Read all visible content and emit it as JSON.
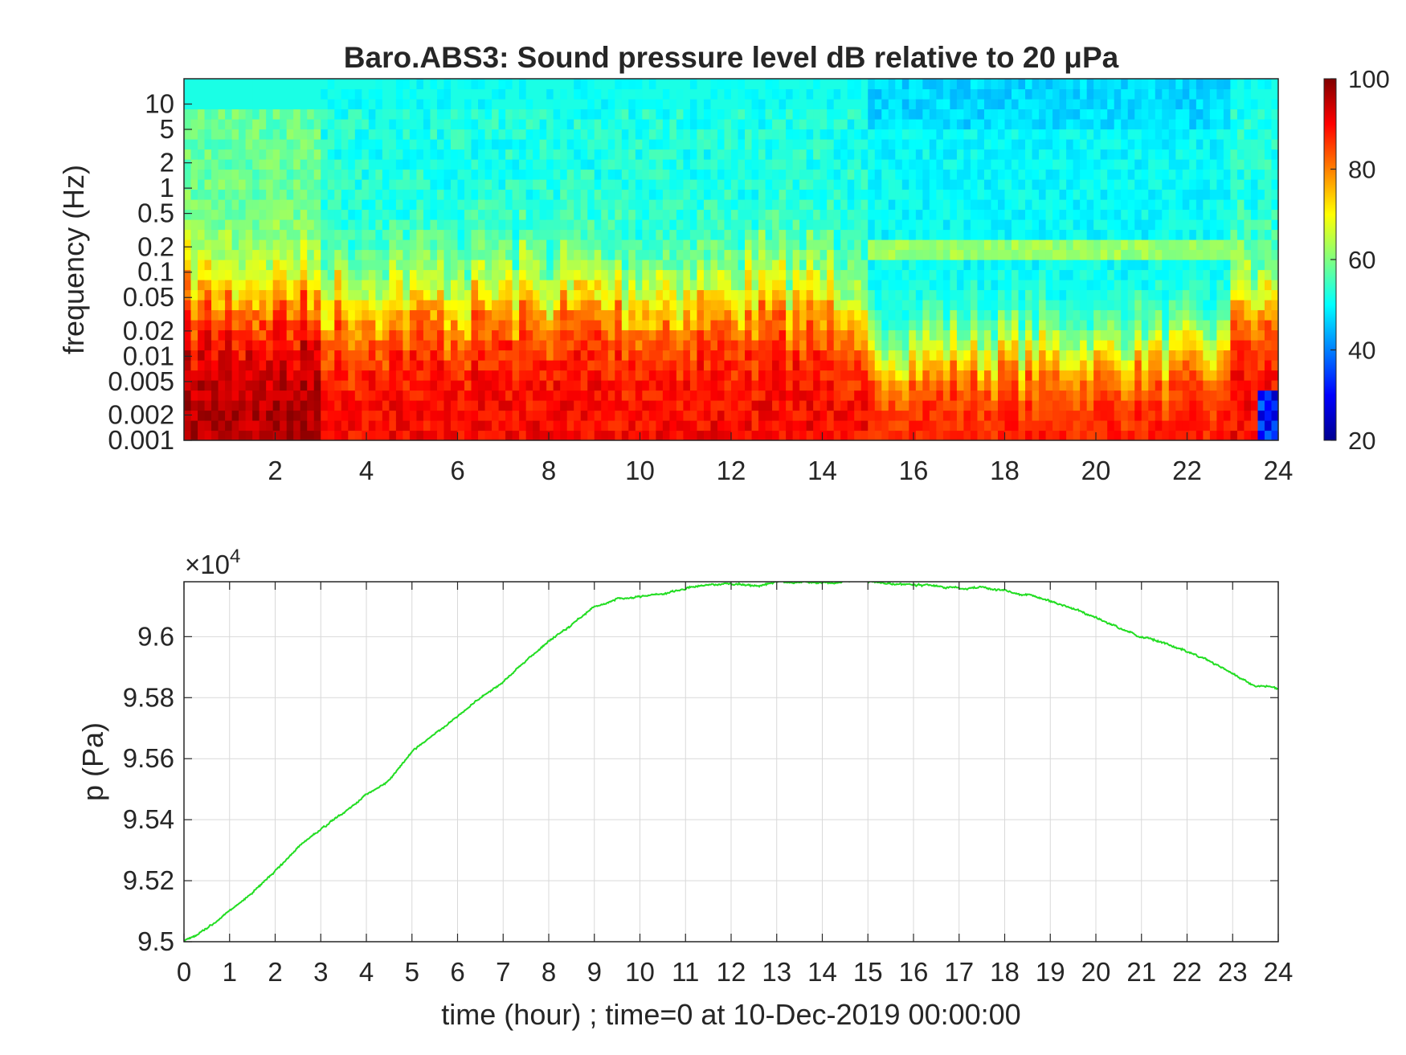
{
  "chart_data": [
    {
      "type": "heatmap",
      "title": "Baro.ABS3: Sound pressure level dB relative to 20 μPa",
      "xlabel": "",
      "ylabel": "frequency (Hz)",
      "xlim": [
        0,
        24
      ],
      "x_ticks": [
        "2",
        "4",
        "6",
        "8",
        "10",
        "12",
        "14",
        "16",
        "18",
        "20",
        "22",
        "24"
      ],
      "y_scale": "log",
      "ylim": [
        0.001,
        20
      ],
      "y_ticks": [
        {
          "value": 10,
          "label": "10"
        },
        {
          "value": 5,
          "label": "5"
        },
        {
          "value": 2,
          "label": "2"
        },
        {
          "value": 1,
          "label": "1"
        },
        {
          "value": 0.5,
          "label": "0.5"
        },
        {
          "value": 0.2,
          "label": "0.2"
        },
        {
          "value": 0.1,
          "label": "0.1"
        },
        {
          "value": 0.05,
          "label": "0.05"
        },
        {
          "value": 0.02,
          "label": "0.02"
        },
        {
          "value": 0.01,
          "label": "0.01"
        },
        {
          "value": 0.005,
          "label": "0.005"
        },
        {
          "value": 0.002,
          "label": "0.002"
        },
        {
          "value": 0.001,
          "label": "0.001"
        }
      ],
      "colormap": "jet",
      "colorbar": {
        "range": [
          20,
          100
        ],
        "ticks": [
          "100",
          "80",
          "60",
          "40",
          "20"
        ]
      },
      "description_levels_db": {
        "high_frequency_level": 50,
        "quiet_period_hours": [
          15,
          23
        ],
        "low_frequency_level": 90
      }
    },
    {
      "type": "line",
      "title": "",
      "xlabel": "time (hour) ; time=0 at 10-Dec-2019 00:00:00",
      "ylabel": "p (Pa)",
      "xlim": [
        0,
        24
      ],
      "ylim": [
        95000,
        96180
      ],
      "x_ticks": [
        "0",
        "1",
        "2",
        "3",
        "4",
        "5",
        "6",
        "7",
        "8",
        "9",
        "10",
        "11",
        "12",
        "13",
        "14",
        "15",
        "16",
        "17",
        "18",
        "19",
        "20",
        "21",
        "22",
        "23",
        "24"
      ],
      "y_ticks": [
        {
          "value": 95000,
          "label": "9.5"
        },
        {
          "value": 95200,
          "label": "9.52"
        },
        {
          "value": 95400,
          "label": "9.54"
        },
        {
          "value": 95600,
          "label": "9.56"
        },
        {
          "value": 95800,
          "label": "9.58"
        },
        {
          "value": 96000,
          "label": "9.6"
        }
      ],
      "exponent_label": "×10",
      "exponent_power": "4",
      "grid": true,
      "line_color": "#22dd22",
      "series": [
        {
          "x": [
            0,
            0.5,
            1,
            1.5,
            2,
            2.5,
            3,
            3.5,
            4,
            4.5,
            5,
            5.5,
            6,
            6.5,
            7,
            7.5,
            8,
            8.5,
            9,
            9.5,
            10,
            10.5,
            11,
            11.5,
            12,
            12.5,
            13,
            13.5,
            14,
            14.5,
            14.8,
            15,
            15.5,
            16,
            16.5,
            17,
            17.5,
            18,
            18.5,
            19,
            19.5,
            20,
            20.5,
            21,
            21.5,
            22,
            22.5,
            23,
            23.5,
            24
          ],
          "y": [
            95005,
            95040,
            95100,
            95160,
            95230,
            95310,
            95370,
            95420,
            95480,
            95530,
            95620,
            95680,
            95740,
            95800,
            95850,
            95920,
            95990,
            96040,
            96100,
            96125,
            96130,
            96140,
            96160,
            96170,
            96175,
            96165,
            96180,
            96175,
            96175,
            96180,
            96195,
            96180,
            96175,
            96170,
            96165,
            96160,
            96160,
            96150,
            96140,
            96120,
            96090,
            96060,
            96030,
            96000,
            95980,
            95950,
            95920,
            95880,
            95840,
            95830
          ]
        }
      ]
    }
  ]
}
